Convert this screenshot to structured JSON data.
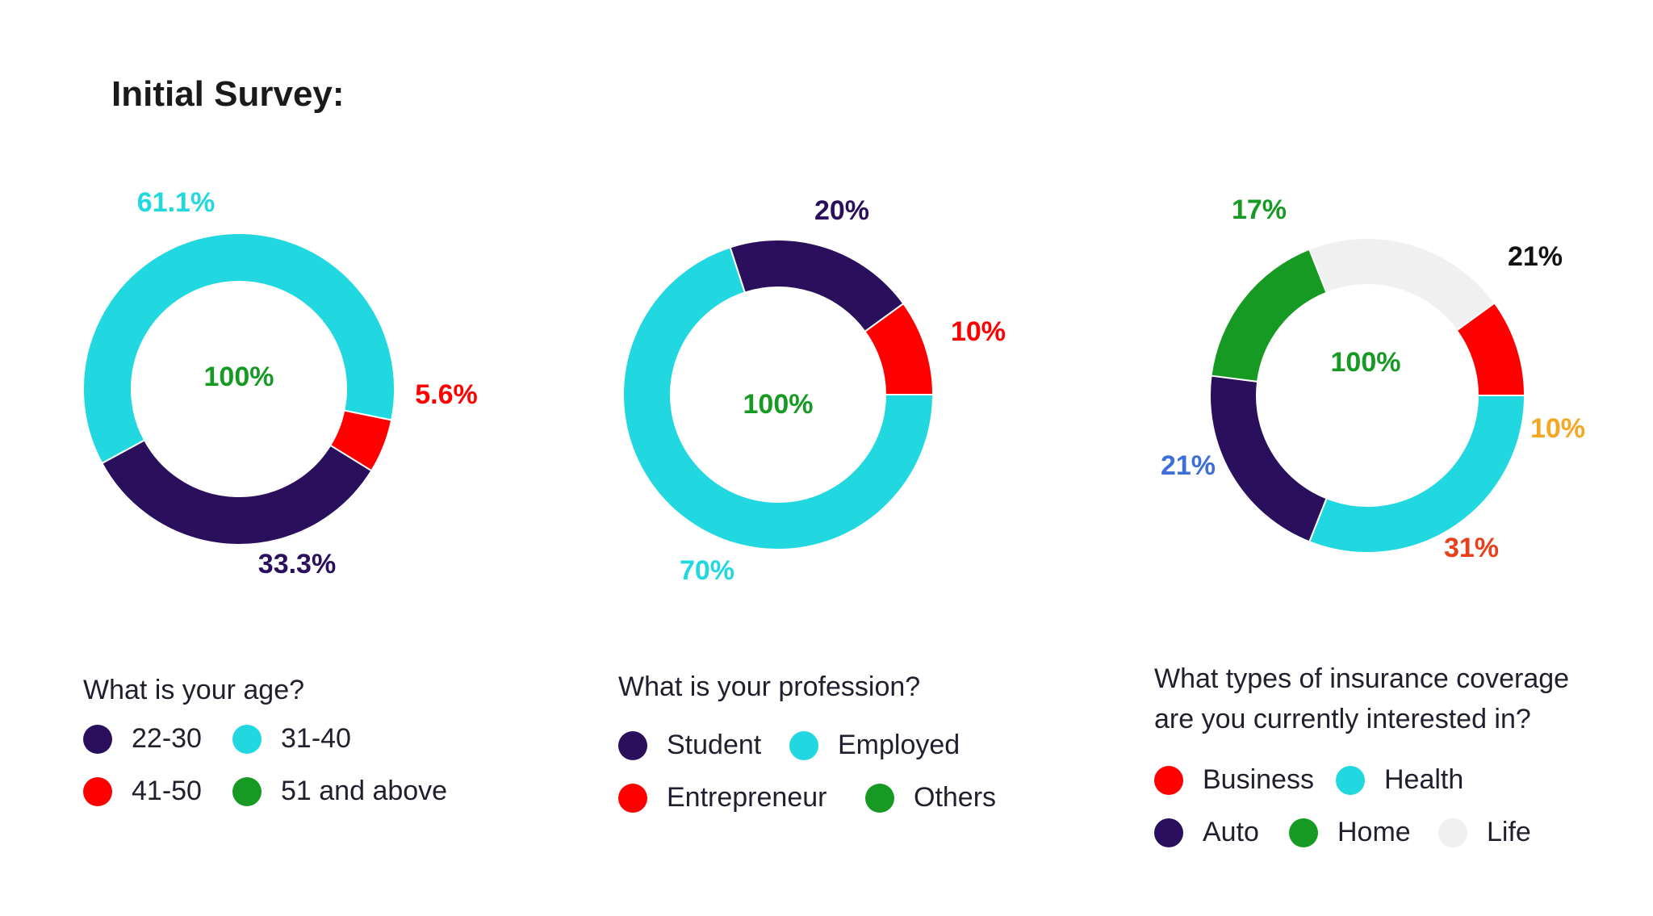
{
  "page": {
    "title": "Initial Survey:"
  },
  "chart_data": [
    {
      "type": "pie",
      "question": "What is your age?",
      "center_label": "100%",
      "slices": [
        {
          "name": "22-30",
          "value": 33.3,
          "label": "33.3%",
          "color": "#2a0f5c",
          "label_color": "#2a0f5c"
        },
        {
          "name": "31-40",
          "value": 61.1,
          "label": "61.1%",
          "color": "#22d8e0",
          "label_color": "#22d8e0"
        },
        {
          "name": "41-50",
          "value": 5.6,
          "label": "5.6%",
          "color": "#ff0000",
          "label_color": "#ff0000"
        },
        {
          "name": "51 and above",
          "value": 0,
          "label": "",
          "color": "#179a24",
          "label_color": "#179a24"
        }
      ]
    },
    {
      "type": "pie",
      "question": "What is your profession?",
      "center_label": "100%",
      "slices": [
        {
          "name": "Student",
          "value": 20,
          "label": "20%",
          "color": "#2a0f5c",
          "label_color": "#2a0f5c"
        },
        {
          "name": "Employed",
          "value": 70,
          "label": "70%",
          "color": "#22d8e0",
          "label_color": "#22d8e0"
        },
        {
          "name": "Entrepreneur",
          "value": 10,
          "label": "10%",
          "color": "#ff0000",
          "label_color": "#ff0000"
        },
        {
          "name": "Others",
          "value": 0,
          "label": "",
          "color": "#179a24",
          "label_color": "#179a24"
        }
      ]
    },
    {
      "type": "pie",
      "question": "What types of insurance coverage are you currently interested in?",
      "question_lines": [
        "What types of insurance coverage",
        "are you currently interested in?"
      ],
      "center_label": "100%",
      "slices": [
        {
          "name": "Business",
          "value": 10,
          "label": "10%",
          "color": "#ff0000",
          "label_color": "#f5a623"
        },
        {
          "name": "Health",
          "value": 31,
          "label": "31%",
          "color": "#22d8e0",
          "label_color": "#e8401c"
        },
        {
          "name": "Auto",
          "value": 21,
          "label": "21%",
          "color": "#2a0f5c",
          "label_color": "#3d6fd6"
        },
        {
          "name": "Home",
          "value": 17,
          "label": "17%",
          "color": "#179a24",
          "label_color": "#179a24"
        },
        {
          "name": "Life",
          "value": 21,
          "label": "21%",
          "color": "#f0f0f0",
          "label_color": "#111111"
        }
      ]
    }
  ],
  "colors": {
    "center_label": "#179a24"
  }
}
